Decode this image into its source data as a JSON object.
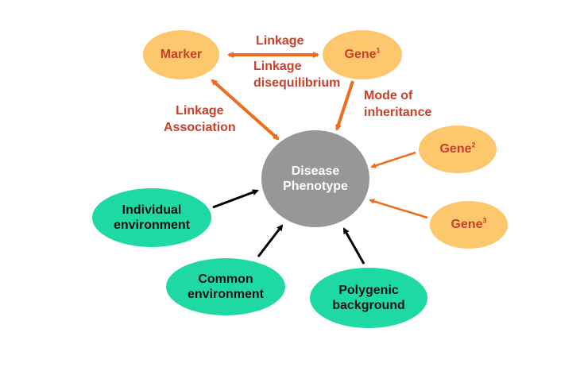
{
  "colors": {
    "gene_fill": "#fdc76d",
    "gene_text": "#c8402a",
    "env_fill": "#1fd9a4",
    "center_fill": "#979797",
    "orange_arrow": "#ee6d1c",
    "black_arrow": "#000000"
  },
  "nodes": {
    "marker": "Marker",
    "gene1": {
      "name": "Gene",
      "sup": "1"
    },
    "gene2": {
      "name": "Gene",
      "sup": "2"
    },
    "gene3": {
      "name": "Gene",
      "sup": "3"
    },
    "center": {
      "line1": "Disease",
      "line2": "Phenotype"
    },
    "individual_env": {
      "line1": "Individual",
      "line2": "environment"
    },
    "common_env": {
      "line1": "Common",
      "line2": "environment"
    },
    "polygenic": {
      "line1": "Polygenic",
      "line2": "background"
    }
  },
  "labels": {
    "linkage_top": "Linkage",
    "linkage_diseq_1": "Linkage",
    "linkage_diseq_2": "disequilibrium",
    "mode_1": "Mode of",
    "mode_2": "inheritance",
    "assoc_1": "Linkage",
    "assoc_2": "Association"
  }
}
